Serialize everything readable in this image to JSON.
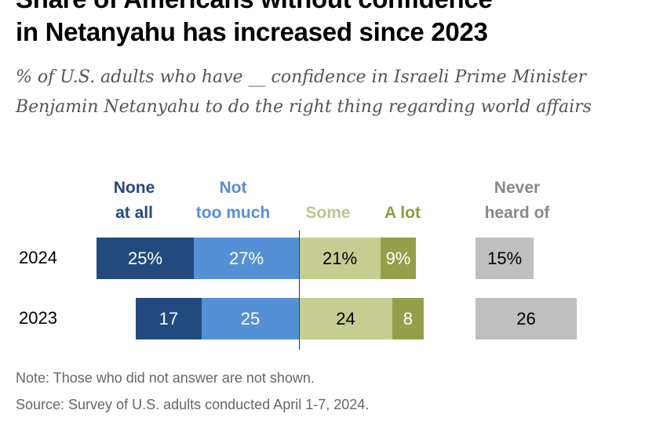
{
  "chart_data": {
    "type": "bar",
    "orientation": "horizontal",
    "stacked": "diverging",
    "title_line1": "Share of Americans without confidence",
    "title_line2": "in Netanyahu has increased since 2023",
    "subtitle": "% of U.S. adults who have __ confidence in Israeli Prime Minister Benjamin Netanyahu to do the right thing regarding world affairs",
    "categories": [
      "2024",
      "2023"
    ],
    "series": [
      {
        "name": "None at all",
        "name_lines": [
          "None",
          "at all"
        ],
        "color": "#234a7e",
        "label_color": "#234a7e",
        "text_color": "#ffffff",
        "side": "negative",
        "values": [
          25,
          17
        ],
        "labels": [
          "25%",
          "17"
        ]
      },
      {
        "name": "Not too much",
        "name_lines": [
          "Not",
          "too much"
        ],
        "color": "#5590d6",
        "label_color": "#5590d6",
        "text_color": "#ffffff",
        "side": "negative",
        "values": [
          27,
          25
        ],
        "labels": [
          "27%",
          "25"
        ]
      },
      {
        "name": "Some",
        "name_lines": [
          "",
          "Some"
        ],
        "color": "#c6cd91",
        "label_color": "#bcc58a",
        "text_color": "#000000",
        "side": "positive",
        "values": [
          21,
          24
        ],
        "labels": [
          "21%",
          "24"
        ]
      },
      {
        "name": "A lot",
        "name_lines": [
          "",
          "A lot"
        ],
        "color": "#959f4a",
        "label_color": "#8e9a3f",
        "text_color": "#ffffff",
        "side": "positive",
        "values": [
          9,
          8
        ],
        "labels": [
          "9%",
          "8"
        ]
      },
      {
        "name": "Never heard of",
        "name_lines": [
          "Never",
          "heard of"
        ],
        "color": "#bfbfbf",
        "label_color": "#888888",
        "text_color": "#000000",
        "side": "separate",
        "values": [
          15,
          26
        ],
        "labels": [
          "15%",
          "26"
        ]
      }
    ],
    "note": "Note: Those who did not answer are not shown.",
    "source": "Source: Survey of U.S. adults conducted April 1-7, 2024."
  }
}
